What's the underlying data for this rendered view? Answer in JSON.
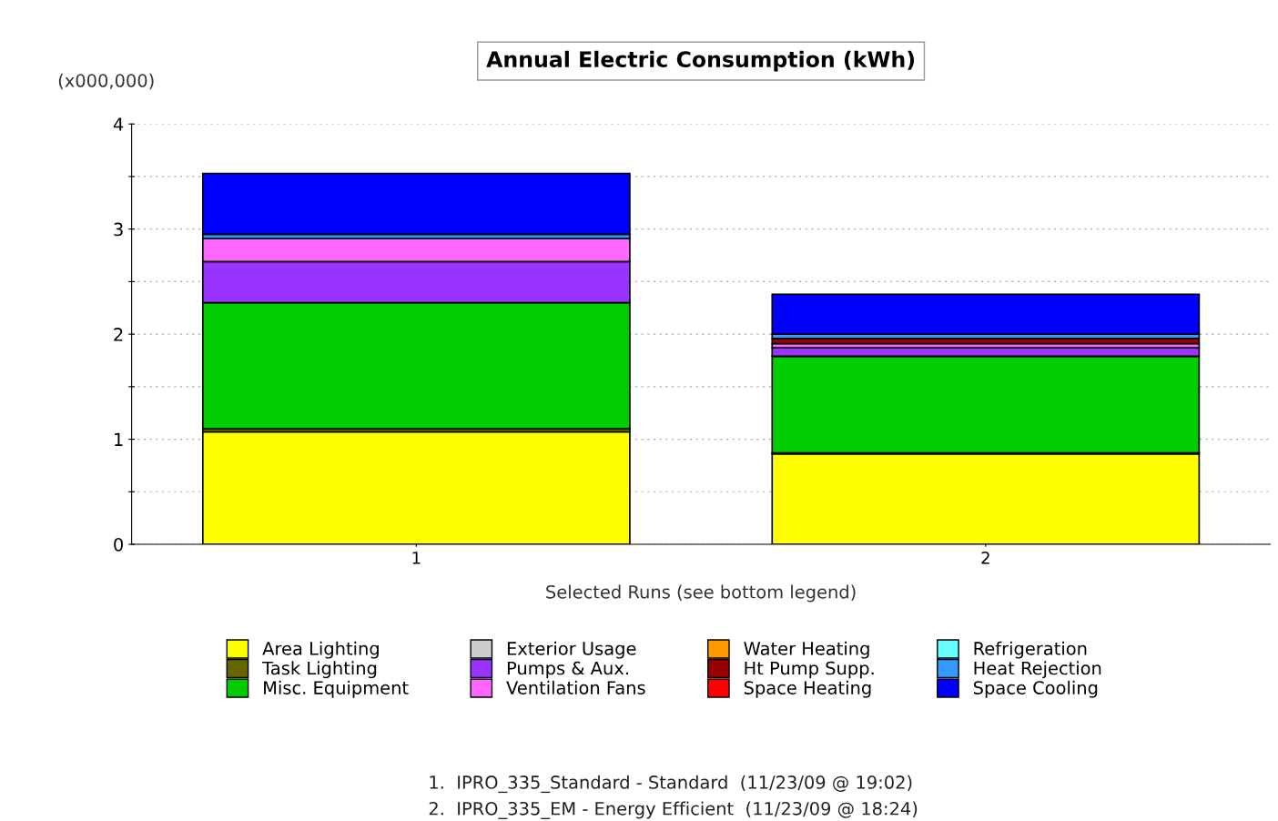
{
  "chart_data": {
    "type": "bar",
    "title": "Annual Electric Consumption (kWh)",
    "ylabel": "(x000,000)",
    "xlabel": "Selected Runs (see bottom legend)",
    "categories": [
      "1",
      "2"
    ],
    "stacked": true,
    "grid": "y",
    "legend": "bottom",
    "ylim": [
      0,
      4
    ],
    "yticks": [
      0,
      {
        "value": 0.5,
        "label": null
      },
      1,
      {
        "value": 1.5,
        "label": null
      },
      2,
      {
        "value": 2.5,
        "label": null
      },
      3,
      {
        "value": 3.5,
        "label": null
      },
      4
    ],
    "series": [
      {
        "name": "Area Lighting",
        "color": "#ffff00",
        "values": [
          1.07,
          0.86
        ]
      },
      {
        "name": "Task Lighting",
        "color": "#666600",
        "values": [
          0.03,
          0.01
        ]
      },
      {
        "name": "Misc. Equipment",
        "color": "#00cc00",
        "values": [
          1.2,
          0.92
        ]
      },
      {
        "name": "Exterior Usage",
        "color": "#cccccc",
        "values": [
          0,
          0
        ]
      },
      {
        "name": "Pumps & Aux.",
        "color": "#9933ff",
        "values": [
          0.39,
          0.08
        ]
      },
      {
        "name": "Ventilation Fans",
        "color": "#ff66ff",
        "values": [
          0.22,
          0.04
        ]
      },
      {
        "name": "Water Heating",
        "color": "#ff9900",
        "values": [
          0,
          0
        ]
      },
      {
        "name": "Ht Pump Supp.",
        "color": "#990000",
        "values": [
          0,
          0.05
        ]
      },
      {
        "name": "Space Heating",
        "color": "#ff0000",
        "values": [
          0,
          0
        ]
      },
      {
        "name": "Refrigeration",
        "color": "#66ffff",
        "values": [
          0,
          0
        ]
      },
      {
        "name": "Heat Rejection",
        "color": "#3399ff",
        "values": [
          0.04,
          0.04
        ]
      },
      {
        "name": "Space Cooling",
        "color": "#0000ff",
        "values": [
          0.58,
          0.38
        ]
      }
    ],
    "annotations": [
      "1.  IPRO_335_Standard - Standard  (11/23/09 @ 19:02)",
      "2.  IPRO_335_EM - Energy Efficient  (11/23/09 @ 18:24)"
    ]
  }
}
